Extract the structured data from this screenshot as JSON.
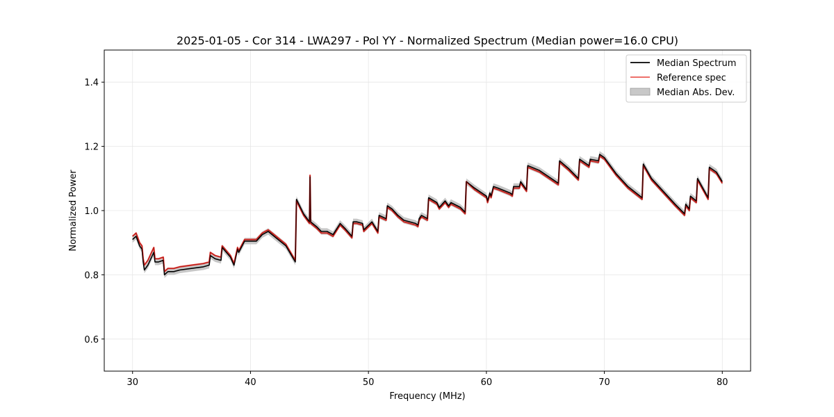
{
  "chart_data": {
    "type": "line",
    "title": "2025-01-05 - Cor 314 - LWA297 - Pol YY - Normalized Spectrum (Median power=16.0 CPU)",
    "xlabel": "Frequency (MHz)",
    "ylabel": "Normalized Power",
    "xlim": [
      27.6,
      82.4
    ],
    "ylim": [
      0.5,
      1.5
    ],
    "xticks": [
      30,
      40,
      50,
      60,
      70,
      80
    ],
    "yticks": [
      0.6,
      0.8,
      1.0,
      1.2,
      1.4
    ],
    "xtick_labels": [
      "30",
      "40",
      "50",
      "60",
      "70",
      "80"
    ],
    "ytick_labels": [
      "0.6",
      "0.8",
      "1.0",
      "1.2",
      "1.4"
    ],
    "grid": true,
    "legend_position": "top-right",
    "legend": [
      "Median Spectrum",
      "Reference spec",
      "Median Abs. Dev."
    ],
    "mad_halfwidth": 0.01,
    "colors": {
      "median": "#000000",
      "reference": "#e8413a",
      "mad_fill": "#bdbdbd"
    },
    "series": [
      {
        "name": "Median Spectrum",
        "x": [
          30.0,
          30.3,
          30.6,
          30.8,
          30.9,
          31.0,
          31.3,
          31.8,
          31.9,
          32.2,
          32.6,
          32.7,
          33.0,
          33.5,
          34.0,
          35.0,
          36.0,
          36.5,
          36.6,
          37.0,
          37.5,
          37.6,
          38.3,
          38.6,
          38.9,
          39.0,
          39.5,
          40.5,
          41.0,
          41.5,
          42.0,
          43.0,
          43.8,
          43.9,
          44.5,
          45.0,
          45.05,
          45.1,
          45.6,
          46.0,
          46.5,
          47.0,
          47.6,
          48.0,
          48.6,
          48.7,
          49.0,
          49.5,
          49.6,
          50.3,
          50.8,
          50.9,
          51.5,
          51.6,
          52.0,
          52.5,
          53.0,
          53.5,
          54.0,
          54.2,
          54.3,
          54.5,
          55.0,
          55.1,
          55.8,
          56.0,
          56.5,
          56.8,
          57.0,
          57.8,
          58.2,
          58.3,
          59.0,
          60.0,
          60.1,
          60.3,
          60.4,
          60.6,
          61.0,
          62.0,
          62.2,
          62.3,
          62.8,
          62.9,
          63.4,
          63.5,
          64.5,
          65.5,
          66.1,
          66.2,
          67.0,
          67.8,
          67.9,
          68.7,
          68.8,
          69.5,
          69.6,
          70.0,
          71.0,
          72.0,
          73.2,
          73.3,
          74.0,
          75.0,
          76.0,
          76.8,
          76.9,
          77.2,
          77.3,
          77.8,
          77.9,
          78.8,
          78.9,
          79.5,
          80.0
        ],
        "values": [
          0.91,
          0.92,
          0.89,
          0.88,
          0.84,
          0.815,
          0.83,
          0.87,
          0.84,
          0.84,
          0.845,
          0.8,
          0.81,
          0.81,
          0.815,
          0.82,
          0.825,
          0.83,
          0.86,
          0.85,
          0.845,
          0.885,
          0.855,
          0.83,
          0.88,
          0.87,
          0.905,
          0.905,
          0.925,
          0.935,
          0.92,
          0.89,
          0.84,
          1.035,
          0.99,
          0.965,
          1.105,
          0.965,
          0.95,
          0.935,
          0.935,
          0.925,
          0.96,
          0.945,
          0.92,
          0.965,
          0.965,
          0.96,
          0.94,
          0.965,
          0.935,
          0.985,
          0.975,
          1.015,
          1.005,
          0.985,
          0.97,
          0.965,
          0.96,
          0.955,
          0.975,
          0.985,
          0.975,
          1.04,
          1.025,
          1.01,
          1.03,
          1.015,
          1.025,
          1.01,
          0.995,
          1.09,
          1.07,
          1.045,
          1.03,
          1.055,
          1.045,
          1.075,
          1.07,
          1.055,
          1.05,
          1.075,
          1.075,
          1.09,
          1.065,
          1.14,
          1.125,
          1.1,
          1.085,
          1.155,
          1.13,
          1.1,
          1.16,
          1.14,
          1.16,
          1.155,
          1.175,
          1.165,
          1.115,
          1.075,
          1.04,
          1.145,
          1.1,
          1.06,
          1.02,
          0.99,
          1.02,
          1.005,
          1.045,
          1.03,
          1.1,
          1.04,
          1.135,
          1.12,
          1.09
        ]
      },
      {
        "name": "Reference spec",
        "x": [
          30.0,
          30.3,
          30.6,
          30.8,
          30.9,
          31.0,
          31.3,
          31.8,
          31.9,
          32.2,
          32.6,
          32.7,
          33.0,
          33.5,
          34.0,
          35.0,
          36.0,
          36.5,
          36.6,
          37.0,
          37.5,
          37.6,
          38.3,
          38.6,
          38.9,
          39.0,
          39.5,
          40.5,
          41.0,
          41.5,
          42.0,
          43.0,
          43.8,
          43.9,
          44.5,
          45.0,
          45.05,
          45.1,
          45.6,
          46.0,
          46.5,
          47.0,
          47.6,
          48.0,
          48.6,
          48.7,
          49.0,
          49.5,
          49.6,
          50.3,
          50.8,
          50.9,
          51.5,
          51.6,
          52.0,
          52.5,
          53.0,
          53.5,
          54.0,
          54.2,
          54.3,
          54.5,
          55.0,
          55.1,
          55.8,
          56.0,
          56.5,
          56.8,
          57.0,
          57.8,
          58.2,
          58.3,
          59.0,
          60.0,
          60.1,
          60.3,
          60.4,
          60.6,
          61.0,
          62.0,
          62.2,
          62.3,
          62.8,
          62.9,
          63.4,
          63.5,
          64.5,
          65.5,
          66.1,
          66.2,
          67.0,
          67.8,
          67.9,
          68.7,
          68.8,
          69.5,
          69.6,
          70.0,
          71.0,
          72.0,
          73.2,
          73.3,
          74.0,
          75.0,
          76.0,
          76.8,
          76.9,
          77.2,
          77.3,
          77.8,
          77.9,
          78.8,
          78.9,
          79.5,
          80.0
        ],
        "values": [
          0.92,
          0.93,
          0.9,
          0.89,
          0.85,
          0.83,
          0.845,
          0.885,
          0.85,
          0.85,
          0.855,
          0.81,
          0.82,
          0.82,
          0.825,
          0.83,
          0.835,
          0.84,
          0.87,
          0.86,
          0.855,
          0.89,
          0.86,
          0.835,
          0.885,
          0.875,
          0.91,
          0.91,
          0.93,
          0.94,
          0.925,
          0.895,
          0.845,
          1.03,
          0.985,
          0.96,
          1.11,
          0.96,
          0.945,
          0.93,
          0.93,
          0.92,
          0.955,
          0.94,
          0.915,
          0.96,
          0.96,
          0.955,
          0.935,
          0.96,
          0.93,
          0.98,
          0.97,
          1.01,
          1.0,
          0.98,
          0.965,
          0.96,
          0.955,
          0.95,
          0.97,
          0.98,
          0.97,
          1.035,
          1.02,
          1.005,
          1.025,
          1.01,
          1.02,
          1.005,
          0.99,
          1.09,
          1.065,
          1.04,
          1.025,
          1.05,
          1.04,
          1.07,
          1.065,
          1.05,
          1.045,
          1.07,
          1.07,
          1.085,
          1.06,
          1.135,
          1.12,
          1.095,
          1.08,
          1.15,
          1.125,
          1.095,
          1.155,
          1.135,
          1.155,
          1.15,
          1.17,
          1.16,
          1.11,
          1.07,
          1.035,
          1.14,
          1.095,
          1.055,
          1.015,
          0.985,
          1.015,
          1.0,
          1.04,
          1.025,
          1.095,
          1.035,
          1.13,
          1.115,
          1.085
        ]
      }
    ]
  }
}
